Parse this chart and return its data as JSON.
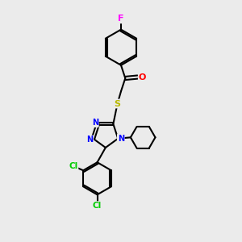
{
  "bg_color": "#ebebeb",
  "bond_color": "#000000",
  "atom_colors": {
    "F": "#ff00ff",
    "O": "#ff0000",
    "S": "#b8b800",
    "N": "#0000ff",
    "Cl": "#00cc00",
    "C": "#000000"
  },
  "figsize": [
    3.0,
    3.0
  ],
  "dpi": 100
}
